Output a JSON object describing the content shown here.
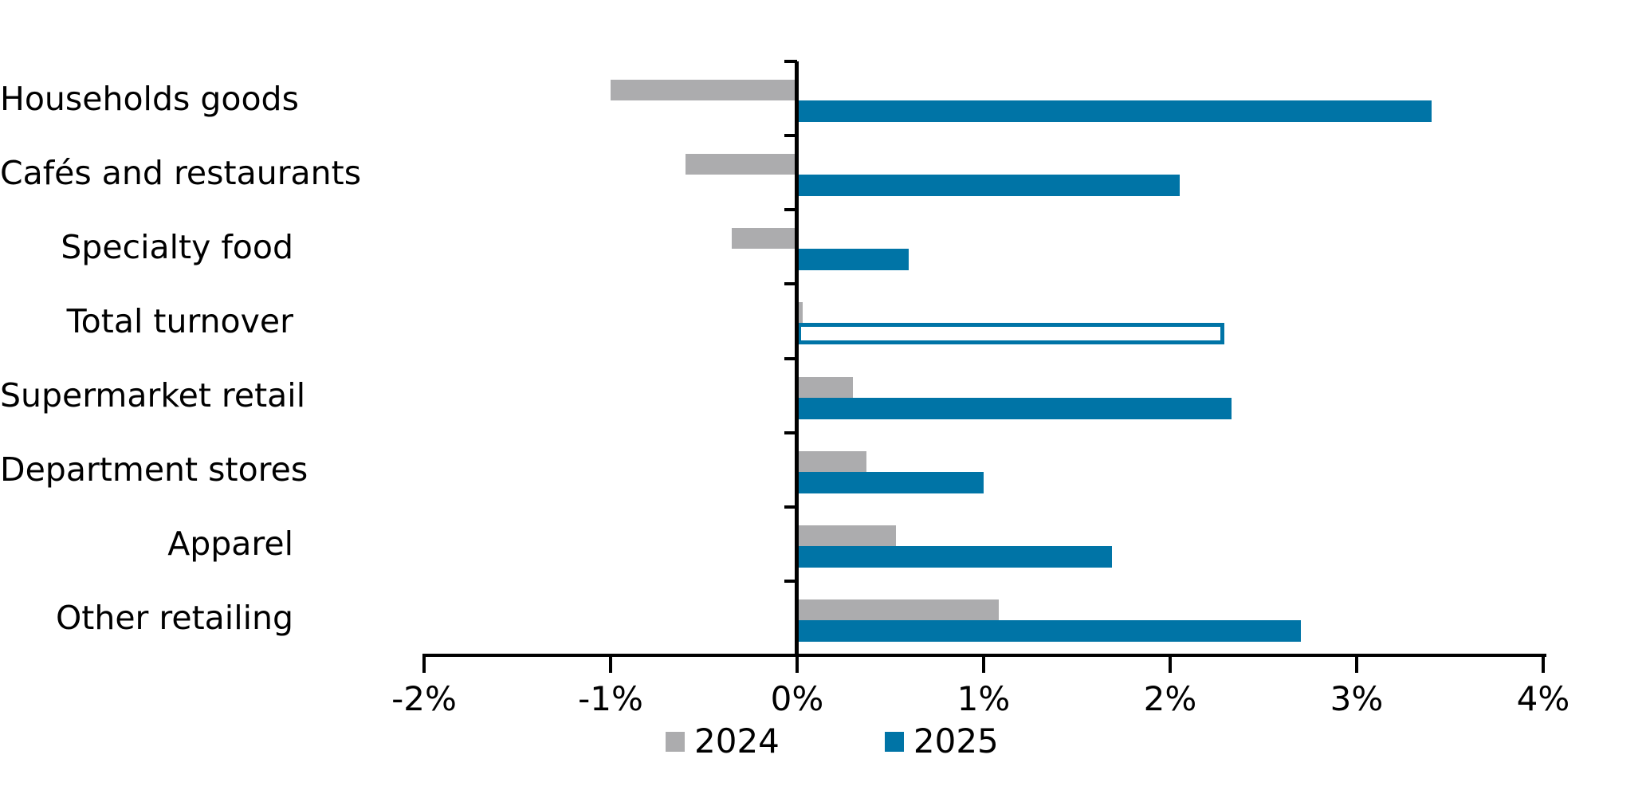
{
  "chart_data": {
    "type": "bar",
    "orientation": "horizontal",
    "title": "",
    "xlabel": "",
    "ylabel": "",
    "categories": [
      "Households goods",
      "Cafés and restaurants",
      "Specialty food",
      "Total turnover",
      "Supermarket retail",
      "Department stores",
      "Apparel",
      "Other retailing"
    ],
    "series": [
      {
        "name": "2024",
        "color": "#ACACAE",
        "values": [
          -1.0,
          -0.6,
          -0.35,
          0.03,
          0.3,
          0.37,
          0.53,
          1.08
        ]
      },
      {
        "name": "2025",
        "color": "#0074A6",
        "values": [
          3.4,
          2.05,
          0.6,
          2.29,
          2.33,
          1.0,
          1.69,
          2.7
        ]
      }
    ],
    "highlight": {
      "category": "Total turnover",
      "series": "2025",
      "style": "outlined-hollow-bar"
    },
    "xlim": [
      -2,
      4
    ],
    "x_tick_values": [
      -2,
      -1,
      0,
      1,
      2,
      3,
      4
    ],
    "x_tick_labels": [
      "-2%",
      "-1%",
      "0%",
      "1%",
      "2%",
      "3%",
      "4%"
    ],
    "grid": false,
    "legend_position": "bottom",
    "unit_suffix": "%"
  },
  "legend": {
    "items": [
      {
        "label": "2024",
        "color": "#ACACAE"
      },
      {
        "label": "2025",
        "color": "#0074A6"
      }
    ]
  },
  "colors": {
    "axis": "#000000",
    "background": "#FFFFFF",
    "series_2024": "#ACACAE",
    "series_2025": "#0074A6"
  }
}
